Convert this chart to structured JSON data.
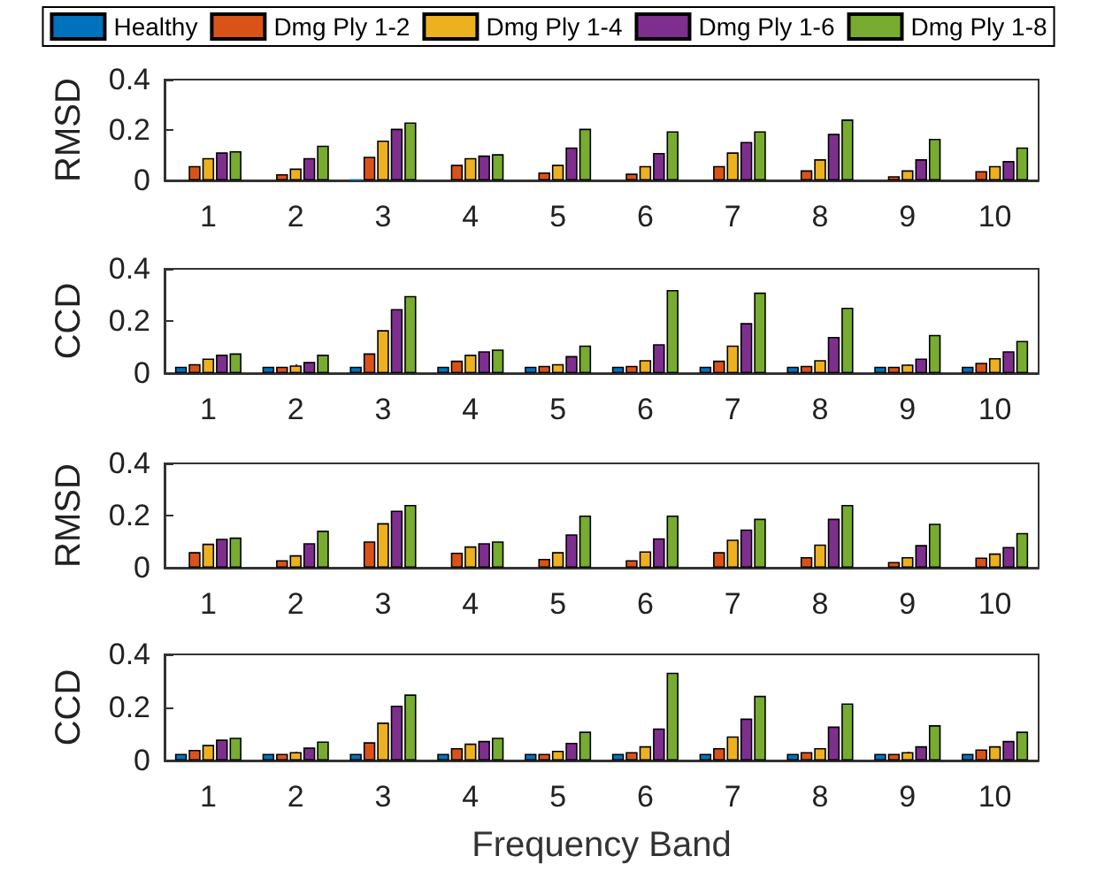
{
  "chart_data": [
    {
      "type": "bar",
      "ylabel": "RMSD",
      "categories": [
        "1",
        "2",
        "3",
        "4",
        "5",
        "6",
        "7",
        "8",
        "9",
        "10"
      ],
      "ylim": [
        0,
        0.4
      ],
      "yticks": [
        0,
        0.2,
        0.4
      ],
      "legend": "top",
      "series": [
        {
          "name": "Healthy",
          "color": "#0072bd",
          "values": [
            0,
            0,
            0.005,
            0,
            0,
            0,
            0,
            0,
            0,
            0
          ]
        },
        {
          "name": "Dmg Ply 1-2",
          "color": "#d95319",
          "values": [
            0.057,
            0.025,
            0.094,
            0.062,
            0.032,
            0.027,
            0.057,
            0.04,
            0.017,
            0.037
          ]
        },
        {
          "name": "Dmg Ply 1-4",
          "color": "#edb120",
          "values": [
            0.089,
            0.047,
            0.158,
            0.089,
            0.062,
            0.057,
            0.111,
            0.084,
            0.04,
            0.057
          ]
        },
        {
          "name": "Dmg Ply 1-6",
          "color": "#7e2f8e",
          "values": [
            0.111,
            0.089,
            0.205,
            0.099,
            0.131,
            0.109,
            0.153,
            0.185,
            0.084,
            0.077
          ]
        },
        {
          "name": "Dmg Ply 1-8",
          "color": "#77ac30",
          "values": [
            0.116,
            0.138,
            0.23,
            0.104,
            0.205,
            0.195,
            0.195,
            0.242,
            0.165,
            0.131
          ]
        }
      ]
    },
    {
      "type": "bar",
      "ylabel": "CCD",
      "categories": [
        "1",
        "2",
        "3",
        "4",
        "5",
        "6",
        "7",
        "8",
        "9",
        "10"
      ],
      "ylim": [
        0,
        0.4
      ],
      "yticks": [
        0,
        0.2,
        0.4
      ],
      "series": [
        {
          "color": "#0072bd",
          "values": [
            0.025,
            0.025,
            0.025,
            0.025,
            0.025,
            0.025,
            0.025,
            0.025,
            0.025,
            0.025
          ]
        },
        {
          "color": "#d95319",
          "values": [
            0.035,
            0.025,
            0.076,
            0.048,
            0.028,
            0.028,
            0.048,
            0.028,
            0.025,
            0.04
          ]
        },
        {
          "color": "#edb120",
          "values": [
            0.056,
            0.03,
            0.165,
            0.071,
            0.035,
            0.05,
            0.106,
            0.05,
            0.033,
            0.058
          ]
        },
        {
          "color": "#7e2f8e",
          "values": [
            0.071,
            0.043,
            0.246,
            0.084,
            0.066,
            0.111,
            0.192,
            0.139,
            0.056,
            0.084
          ]
        },
        {
          "color": "#77ac30",
          "values": [
            0.076,
            0.071,
            0.296,
            0.091,
            0.106,
            0.319,
            0.309,
            0.251,
            0.147,
            0.124
          ]
        }
      ]
    },
    {
      "type": "bar",
      "ylabel": "RMSD",
      "categories": [
        "1",
        "2",
        "3",
        "4",
        "5",
        "6",
        "7",
        "8",
        "9",
        "10"
      ],
      "ylim": [
        0,
        0.4
      ],
      "yticks": [
        0,
        0.2,
        0.4
      ],
      "series": [
        {
          "color": "#0072bd",
          "values": [
            0,
            0,
            0,
            0,
            0,
            0,
            0,
            0,
            0,
            0
          ]
        },
        {
          "color": "#d95319",
          "values": [
            0.06,
            0.029,
            0.101,
            0.058,
            0.034,
            0.029,
            0.06,
            0.041,
            0.022,
            0.039
          ]
        },
        {
          "color": "#edb120",
          "values": [
            0.092,
            0.048,
            0.171,
            0.082,
            0.06,
            0.063,
            0.108,
            0.089,
            0.041,
            0.055
          ]
        },
        {
          "color": "#7e2f8e",
          "values": [
            0.111,
            0.094,
            0.219,
            0.094,
            0.128,
            0.113,
            0.147,
            0.188,
            0.087,
            0.08
          ]
        },
        {
          "color": "#77ac30",
          "values": [
            0.116,
            0.142,
            0.241,
            0.101,
            0.2,
            0.2,
            0.188,
            0.241,
            0.169,
            0.133
          ]
        }
      ]
    },
    {
      "type": "bar",
      "ylabel": "CCD",
      "xlabel": "Frequency Band",
      "categories": [
        "1",
        "2",
        "3",
        "4",
        "5",
        "6",
        "7",
        "8",
        "9",
        "10"
      ],
      "ylim": [
        0,
        0.4
      ],
      "yticks": [
        0,
        0.2,
        0.4
      ],
      "series": [
        {
          "color": "#0072bd",
          "values": [
            0.025,
            0.025,
            0.025,
            0.025,
            0.025,
            0.025,
            0.025,
            0.025,
            0.025,
            0.025
          ]
        },
        {
          "color": "#d95319",
          "values": [
            0.04,
            0.025,
            0.069,
            0.047,
            0.025,
            0.032,
            0.047,
            0.032,
            0.025,
            0.042
          ]
        },
        {
          "color": "#edb120",
          "values": [
            0.059,
            0.032,
            0.143,
            0.064,
            0.037,
            0.054,
            0.091,
            0.047,
            0.032,
            0.054
          ]
        },
        {
          "color": "#7e2f8e",
          "values": [
            0.079,
            0.049,
            0.207,
            0.074,
            0.067,
            0.121,
            0.158,
            0.128,
            0.054,
            0.074
          ]
        },
        {
          "color": "#77ac30",
          "values": [
            0.086,
            0.072,
            0.249,
            0.086,
            0.109,
            0.331,
            0.244,
            0.215,
            0.133,
            0.109
          ]
        }
      ]
    }
  ]
}
